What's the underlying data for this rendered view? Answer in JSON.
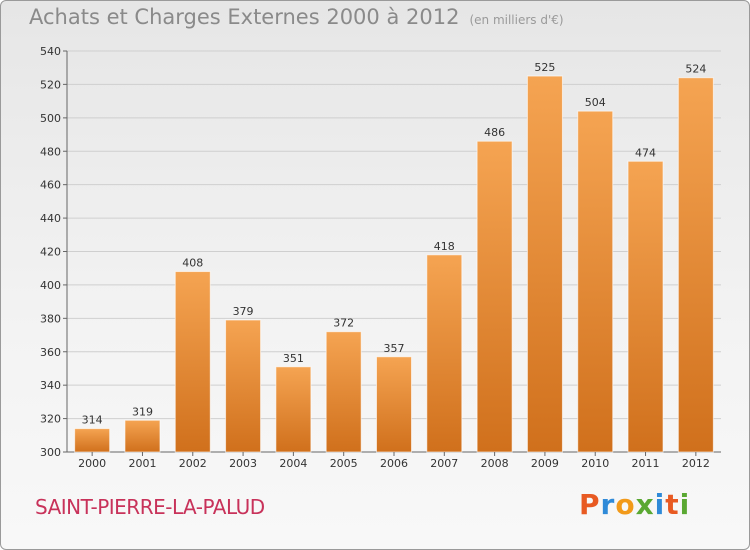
{
  "header": {
    "title": "Achats et Charges Externes 2000 à 2012",
    "subtitle": "(en milliers d'€)"
  },
  "footer": {
    "place": "SAINT-PIERRE-LA-PALUD",
    "logo": "Proxiti"
  },
  "colors": {
    "bar_light": "#f5a452",
    "bar_dark": "#d0701c",
    "grid": "#cfcfcf",
    "title": "#8a8a8a",
    "place": "#c8325a"
  },
  "chart_data": {
    "type": "bar",
    "title": "Achats et Charges Externes 2000 à 2012",
    "subtitle": "(en milliers d'€)",
    "categories": [
      "2000",
      "2001",
      "2002",
      "2003",
      "2004",
      "2005",
      "2006",
      "2007",
      "2008",
      "2009",
      "2010",
      "2011",
      "2012"
    ],
    "values": [
      314,
      319,
      408,
      379,
      351,
      372,
      357,
      418,
      486,
      525,
      504,
      474,
      524
    ],
    "ylim": [
      300,
      540
    ],
    "yticks": [
      300,
      320,
      340,
      360,
      380,
      400,
      420,
      440,
      460,
      480,
      500,
      520,
      540
    ],
    "grid": true,
    "xlabel": "",
    "ylabel": ""
  }
}
